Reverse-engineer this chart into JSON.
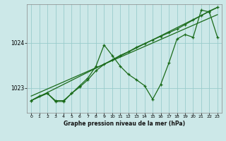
{
  "xlabel": "Graphe pression niveau de la mer (hPa)",
  "bg_color": "#cce8e8",
  "grid_color": "#99cccc",
  "line_color": "#1a6b1a",
  "yticks": [
    1023,
    1024
  ],
  "ylim": [
    1022.45,
    1024.85
  ],
  "xlim": [
    -0.5,
    23.5
  ],
  "xticks": [
    0,
    1,
    2,
    3,
    4,
    5,
    6,
    7,
    8,
    9,
    10,
    11,
    12,
    13,
    14,
    15,
    16,
    17,
    18,
    19,
    20,
    21,
    22,
    23
  ],
  "zigzag_x": [
    0,
    1,
    2,
    3,
    4,
    5,
    6,
    7,
    8,
    9,
    10,
    11,
    12,
    13,
    14,
    15,
    16,
    17,
    18,
    19,
    20,
    21,
    22,
    23
  ],
  "zigzag_y": [
    1022.72,
    1022.82,
    1022.88,
    1022.7,
    1022.7,
    1022.88,
    1023.05,
    1023.22,
    1023.48,
    1023.95,
    1023.72,
    1023.48,
    1023.3,
    1023.18,
    1023.05,
    1022.75,
    1023.08,
    1023.55,
    1024.08,
    1024.18,
    1024.12,
    1024.72,
    1024.68,
    1024.12
  ],
  "smooth_x": [
    0,
    2,
    3,
    4,
    5,
    6,
    7,
    8,
    9,
    10,
    11,
    12,
    13,
    14,
    15,
    16,
    17,
    18,
    19,
    20,
    21,
    22,
    23
  ],
  "smooth_y": [
    1022.72,
    1022.88,
    1022.72,
    1022.72,
    1022.88,
    1023.02,
    1023.18,
    1023.38,
    1023.52,
    1023.62,
    1023.72,
    1023.8,
    1023.9,
    1023.98,
    1024.06,
    1024.14,
    1024.22,
    1024.3,
    1024.4,
    1024.5,
    1024.6,
    1024.7,
    1024.78
  ],
  "trend1_x": [
    0,
    23
  ],
  "trend1_y": [
    1022.72,
    1024.78
  ],
  "trend2_x": [
    0,
    23
  ],
  "trend2_y": [
    1022.82,
    1024.62
  ]
}
